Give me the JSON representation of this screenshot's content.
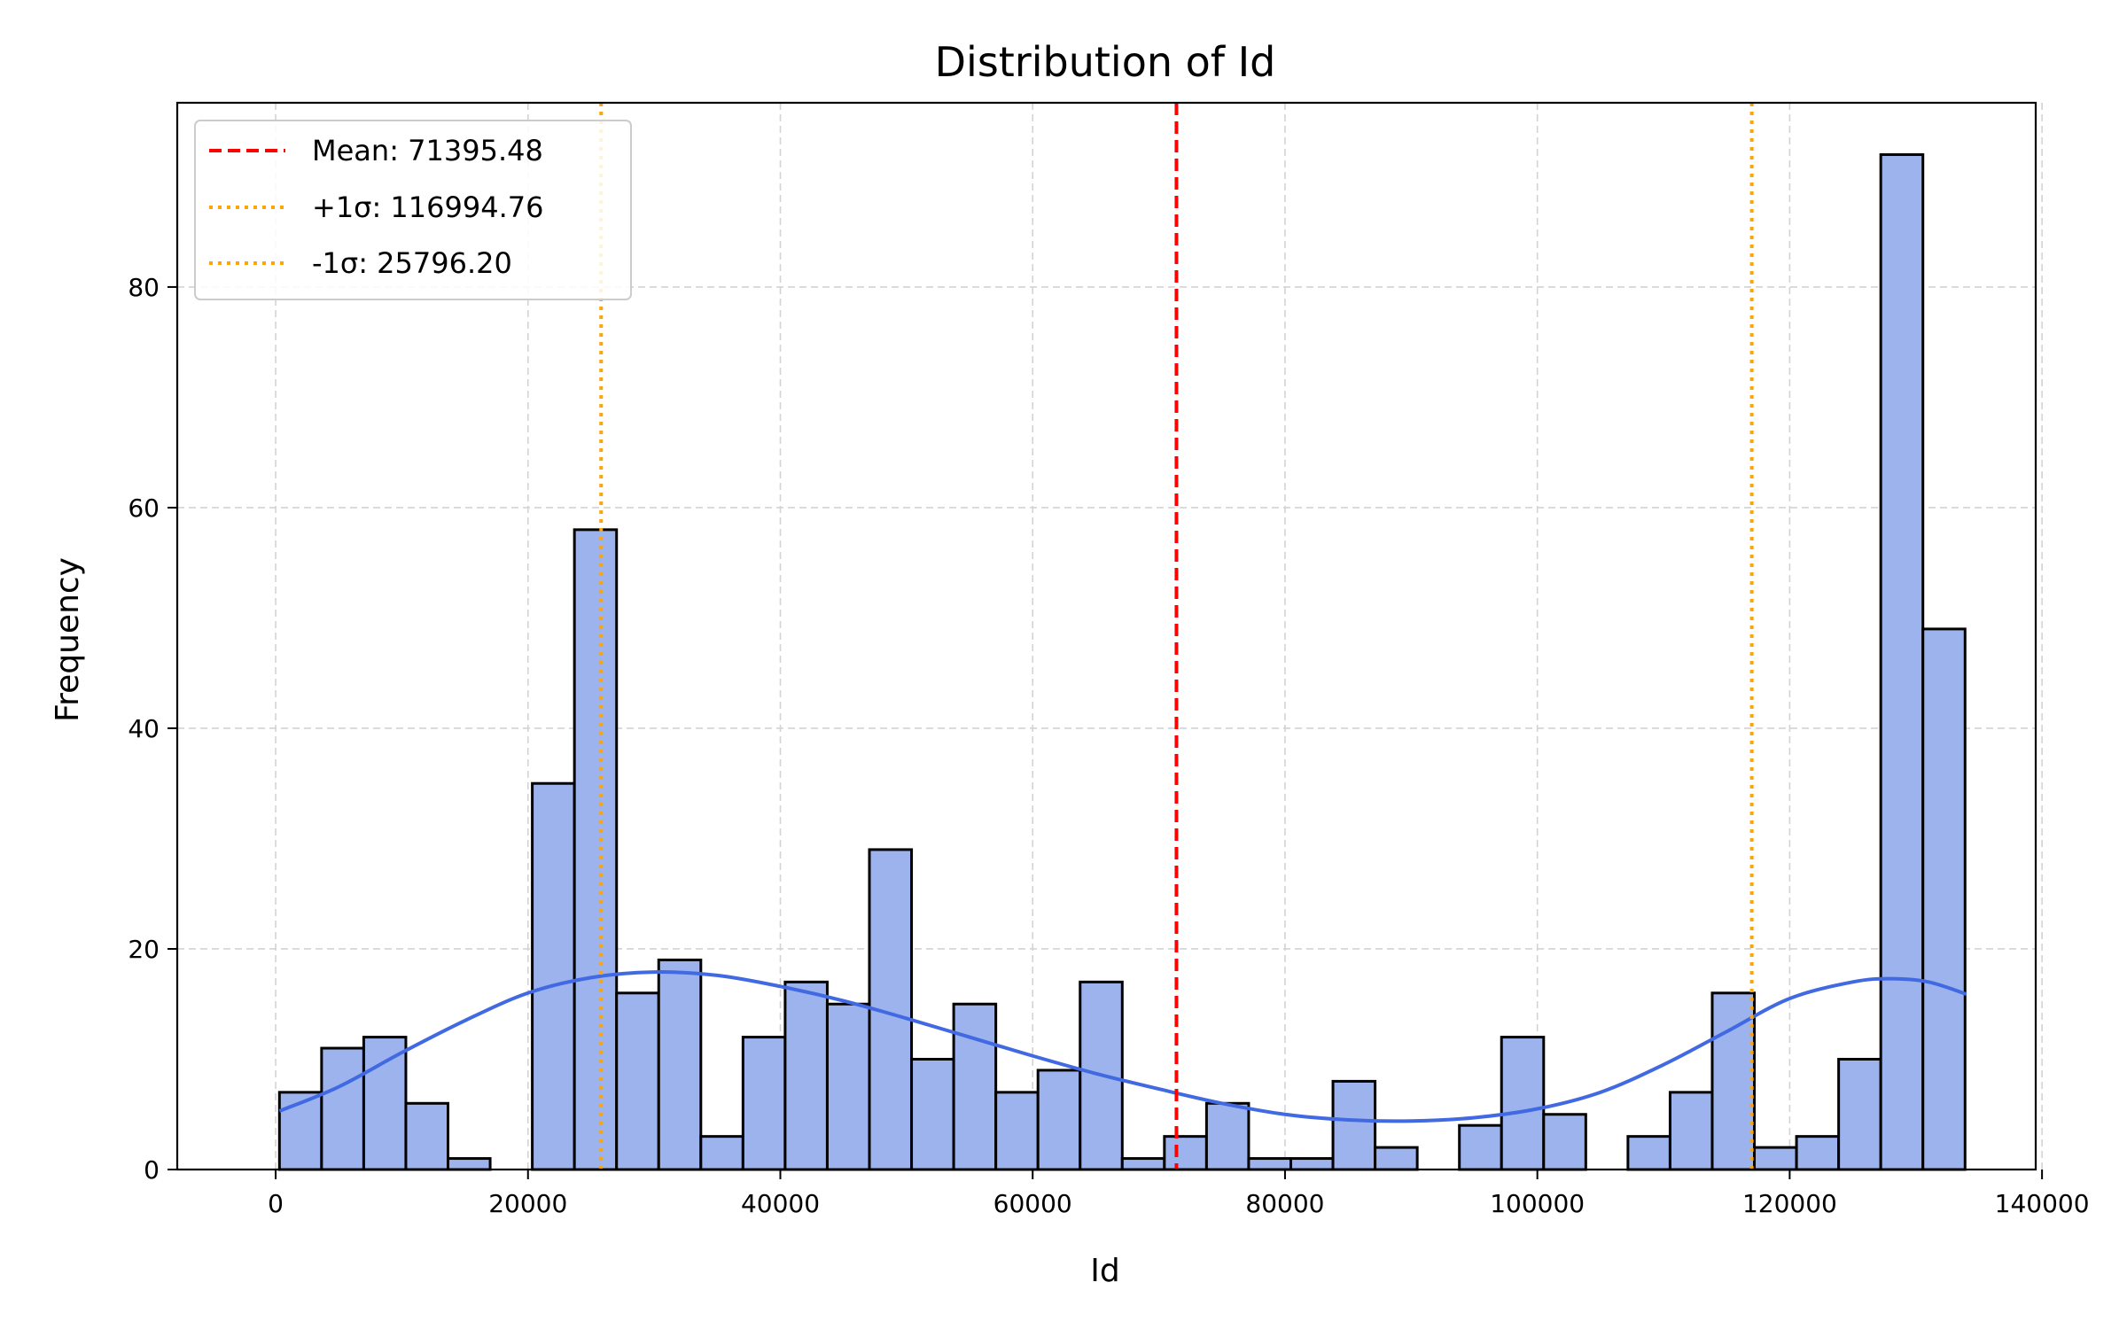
{
  "chart_data": {
    "type": "bar",
    "title": "Distribution of Id",
    "xlabel": "Id",
    "ylabel": "Frequency",
    "xlim": [
      -7800,
      139500
    ],
    "ylim": [
      0,
      96.7
    ],
    "x_ticks": [
      0,
      20000,
      40000,
      60000,
      80000,
      100000,
      120000,
      140000
    ],
    "x_tick_labels": [
      "0",
      "20000",
      "40000",
      "60000",
      "80000",
      "100000",
      "120000",
      "140000"
    ],
    "y_ticks": [
      0,
      20,
      40,
      60,
      80
    ],
    "y_tick_labels": [
      "0",
      "20",
      "40",
      "60",
      "80"
    ],
    "grid": true,
    "legend_position": "top-left",
    "bins": {
      "start": 300,
      "width": 3340,
      "counts": [
        7,
        11,
        12,
        6,
        1,
        0,
        35,
        58,
        16,
        19,
        3,
        12,
        17,
        15,
        29,
        10,
        15,
        7,
        9,
        17,
        1,
        3,
        6,
        1,
        1,
        8,
        2,
        0,
        4,
        12,
        5,
        0,
        3,
        7,
        16,
        2,
        3,
        10,
        92,
        49
      ]
    },
    "kde": {
      "x": [
        300,
        5000,
        10000,
        15000,
        20000,
        25000,
        30000,
        35000,
        40000,
        45000,
        50000,
        55000,
        60000,
        65000,
        70000,
        75000,
        80000,
        85000,
        90000,
        95000,
        100000,
        105000,
        110000,
        115000,
        120000,
        125000,
        128000,
        131000,
        134000
      ],
      "y": [
        5.3,
        7.5,
        10.6,
        13.5,
        16.0,
        17.4,
        17.9,
        17.6,
        16.6,
        15.3,
        13.7,
        12.0,
        10.3,
        8.7,
        7.3,
        6.0,
        5.0,
        4.5,
        4.4,
        4.7,
        5.5,
        7.0,
        9.5,
        12.5,
        15.5,
        17.0,
        17.3,
        17.0,
        15.9
      ]
    },
    "reference_lines": [
      {
        "label": "Mean: 71395.48",
        "value": 71395.48,
        "color": "#ff0000",
        "style": "dashed"
      },
      {
        "label": "+1σ: 116994.76",
        "value": 116994.76,
        "color": "#ffa500",
        "style": "dotted"
      },
      {
        "label": "-1σ: 25796.20",
        "value": 25796.2,
        "color": "#ffa500",
        "style": "dotted"
      }
    ],
    "colors": {
      "bar_fill": "#9db3ee",
      "bar_edge": "#000000",
      "kde": "#4169e1",
      "grid": "#d3d3d3"
    }
  }
}
